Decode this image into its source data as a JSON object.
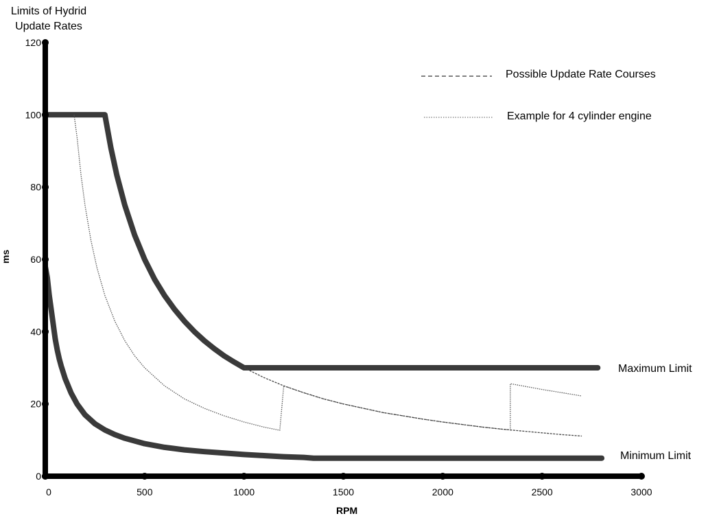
{
  "chart_data": {
    "type": "line",
    "title": [
      "Limits of Hydrid",
      "Update Rates"
    ],
    "xlabel": "RPM",
    "ylabel": "ms",
    "xlim": [
      0,
      3000
    ],
    "ylim": [
      0,
      120
    ],
    "xticks": [
      0,
      500,
      1000,
      1500,
      2000,
      2500,
      3000
    ],
    "yticks": [
      0,
      20,
      40,
      60,
      80,
      100,
      120
    ],
    "grid": false,
    "legend_position": "top-right",
    "legend": [
      {
        "label": "Possible Update Rate Courses",
        "style": "dashed"
      },
      {
        "label": "Example for 4 cylinder engine",
        "style": "dotted"
      }
    ],
    "annotations": [
      {
        "text": "Maximum Limit",
        "near": [
          2800,
          30
        ]
      },
      {
        "text": "Minimum Limit",
        "near": [
          2800,
          5
        ]
      }
    ],
    "series": [
      {
        "label": "Maximum Limit",
        "style": "thick-solid",
        "color": "#3a3a3a",
        "points": [
          [
            0,
            100
          ],
          [
            300,
            100
          ],
          [
            330,
            90.9
          ],
          [
            360,
            83.3
          ],
          [
            400,
            75
          ],
          [
            450,
            66.7
          ],
          [
            500,
            60
          ],
          [
            550,
            54.5
          ],
          [
            600,
            50
          ],
          [
            650,
            46.2
          ],
          [
            700,
            42.9
          ],
          [
            750,
            40
          ],
          [
            800,
            37.5
          ],
          [
            850,
            35.3
          ],
          [
            900,
            33.3
          ],
          [
            950,
            31.6
          ],
          [
            1000,
            30
          ],
          [
            2780,
            30
          ]
        ]
      },
      {
        "label": "Minimum Limit",
        "style": "thick-solid",
        "color": "#3a3a3a",
        "points": [
          [
            0,
            58
          ],
          [
            10,
            55
          ],
          [
            20,
            50
          ],
          [
            30,
            46
          ],
          [
            40,
            42
          ],
          [
            50,
            38
          ],
          [
            60,
            35
          ],
          [
            70,
            32.5
          ],
          [
            80,
            30.5
          ],
          [
            100,
            27
          ],
          [
            130,
            23
          ],
          [
            160,
            20
          ],
          [
            200,
            17
          ],
          [
            250,
            14.5
          ],
          [
            300,
            12.8
          ],
          [
            350,
            11.5
          ],
          [
            400,
            10.5
          ],
          [
            500,
            9
          ],
          [
            600,
            8
          ],
          [
            700,
            7.3
          ],
          [
            800,
            6.8
          ],
          [
            900,
            6.4
          ],
          [
            1000,
            6
          ],
          [
            1100,
            5.7
          ],
          [
            1200,
            5.4
          ],
          [
            1300,
            5.2
          ],
          [
            1350,
            5
          ],
          [
            2800,
            5
          ]
        ]
      },
      {
        "label": "Example for 4 cylinder engine",
        "style": "dotted",
        "color": "#555555",
        "points": [
          [
            145,
            100
          ],
          [
            160,
            93.8
          ],
          [
            180,
            83.3
          ],
          [
            200,
            75
          ],
          [
            230,
            65.2
          ],
          [
            260,
            57.7
          ],
          [
            300,
            50
          ],
          [
            350,
            42.9
          ],
          [
            400,
            37.5
          ],
          [
            450,
            33.3
          ],
          [
            500,
            30
          ],
          [
            600,
            25
          ],
          [
            700,
            21.4
          ],
          [
            800,
            18.8
          ],
          [
            900,
            16.7
          ],
          [
            1000,
            15
          ],
          [
            1100,
            13.6
          ],
          [
            1180,
            12.7
          ],
          [
            1200,
            25
          ],
          [
            1300,
            23.1
          ],
          [
            1400,
            21.4
          ],
          [
            1500,
            20
          ],
          [
            1600,
            18.8
          ],
          [
            1700,
            17.6
          ],
          [
            1800,
            16.7
          ],
          [
            1900,
            15.8
          ],
          [
            2000,
            15
          ],
          [
            2100,
            14.3
          ],
          [
            2200,
            13.6
          ],
          [
            2300,
            13
          ],
          [
            2340,
            12.8
          ],
          [
            2340,
            25.6
          ],
          [
            2400,
            25
          ],
          [
            2500,
            24
          ],
          [
            2600,
            23.1
          ],
          [
            2700,
            22.2
          ]
        ]
      },
      {
        "label": "Possible Update Rate Courses",
        "style": "dashed",
        "color": "#444444",
        "points": [
          [
            1000,
            30
          ],
          [
            1100,
            27.3
          ],
          [
            1200,
            25
          ],
          [
            1300,
            23.1
          ],
          [
            1400,
            21.4
          ],
          [
            1500,
            20
          ],
          [
            1600,
            18.8
          ],
          [
            1700,
            17.6
          ],
          [
            1800,
            16.7
          ],
          [
            1900,
            15.8
          ],
          [
            2000,
            15
          ],
          [
            2100,
            14.3
          ],
          [
            2200,
            13.6
          ],
          [
            2300,
            13
          ],
          [
            2400,
            12.5
          ],
          [
            2500,
            12
          ],
          [
            2600,
            11.5
          ],
          [
            2700,
            11.1
          ]
        ]
      }
    ]
  }
}
